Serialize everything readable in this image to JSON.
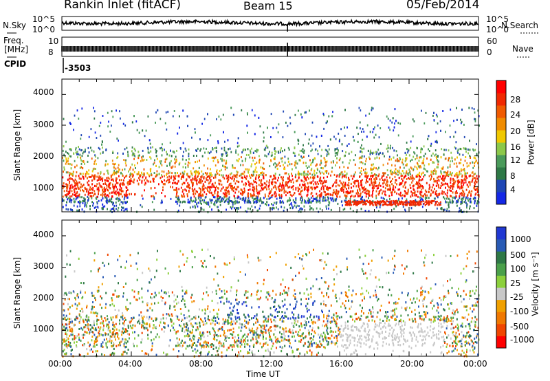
{
  "header": {
    "station": "Rankin Inlet (fitACF)",
    "beam": "Beam 15",
    "date": "05/Feb/2014"
  },
  "param_panels": {
    "nsky_label": "N.Sky",
    "nsearch_label": "N.Search",
    "nsky_ticks": [
      "10^5",
      "10^0"
    ],
    "nsearch_ticks": [
      "10^5",
      "10^0"
    ],
    "freq_label_1": "Freq.",
    "freq_label_2": "[MHz]",
    "freq_ticks": [
      "10",
      "8"
    ],
    "nave_label": "Nave",
    "nave_ticks": [
      "60",
      "0"
    ],
    "cpid_label": "CPID",
    "cpid_value": "-3503"
  },
  "colors": {
    "power_scale": [
      "#1428e6",
      "#1e46b4",
      "#2e7846",
      "#4a9a5a",
      "#8cc84a",
      "#f0c800",
      "#f08c00",
      "#f05a00",
      "#f02800",
      "#ff0000"
    ],
    "velocity_scale": [
      "#2038d2",
      "#285ab4",
      "#2e7846",
      "#4aa04a",
      "#8cd03c",
      "#c8c8c8",
      "#f0a000",
      "#f07800",
      "#f04600",
      "#ff0000"
    ]
  },
  "chart_data": [
    {
      "type": "heatmap",
      "ylabel": "Slant Range [km]",
      "yticks": [
        "1000",
        "2000",
        "3000",
        "4000"
      ],
      "ylim": [
        180,
        4500
      ],
      "xlim": [
        "00:00",
        "24:00"
      ],
      "colorbar": {
        "label": "Power [dB]",
        "ticks": [
          "4",
          "8",
          "12",
          "16",
          "20",
          "24",
          "28"
        ],
        "range": [
          0,
          30
        ]
      }
    },
    {
      "type": "heatmap",
      "ylabel": "Slant Range [km]",
      "yticks": [
        "1000",
        "2000",
        "3000",
        "4000"
      ],
      "ylim": [
        180,
        4500
      ],
      "xlabel": "Time UT",
      "xticks": [
        "00:00",
        "04:00",
        "08:00",
        "12:00",
        "16:00",
        "20:00",
        "00:00"
      ],
      "colorbar": {
        "label": "Velocity [m s⁻¹]",
        "ticks": [
          "1000",
          "500",
          "100",
          "25",
          "-25",
          "-100",
          "-500",
          "-1000"
        ]
      }
    }
  ]
}
